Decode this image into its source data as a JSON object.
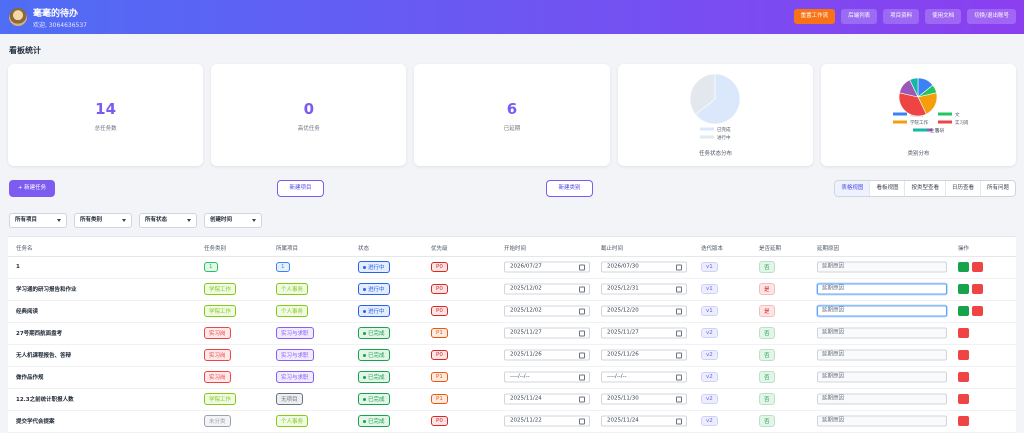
{
  "header": {
    "title": "毫毫的待办",
    "welcome": "欢迎, 3064636537",
    "reset": "重置工作流",
    "buttons": [
      "后端列表",
      "项目资料",
      "使用文档",
      "切换/退出账号"
    ]
  },
  "section_title": "看板统计",
  "stats": [
    {
      "value": "14",
      "label": "总任务数"
    },
    {
      "value": "0",
      "label": "高优任务"
    },
    {
      "value": "6",
      "label": "已延期"
    }
  ],
  "status_pie": {
    "title": "任务状态分布",
    "slices": [
      {
        "name": "已完成",
        "value": 9,
        "color": "#dbe7fb"
      },
      {
        "name": "进行中",
        "value": 5,
        "color": "#e3e8ef"
      }
    ]
  },
  "category_pie": {
    "title": "类别分布",
    "slices": [
      {
        "name": "未分类",
        "value": 2,
        "color": "#3b82f6"
      },
      {
        "name": "文",
        "value": 1,
        "color": "#22c55e"
      },
      {
        "name": "学院工作",
        "value": 3,
        "color": "#f59e0b"
      },
      {
        "name": "实习岗",
        "value": 5,
        "color": "#ef4444"
      },
      {
        "name": "科研",
        "value": 2,
        "color": "#9b59b6"
      },
      {
        "name": "生活",
        "value": 1,
        "color": "#14b8a6"
      }
    ]
  },
  "toolbar": {
    "new_task": "+ 新建任务",
    "new_project": "新建项目",
    "new_category": "新建类别",
    "views": [
      "表格视图",
      "看板视图",
      "按类型查看",
      "日历查看",
      "所有问题"
    ]
  },
  "filters": [
    "所有项目",
    "所有类别",
    "所有状态",
    "创建时间"
  ],
  "table": {
    "columns": [
      "任务名",
      "任务类别",
      "所属项目",
      "状态",
      "优先级",
      "开始时间",
      "截止时间",
      "迭代版本",
      "是否延期",
      "延期原因",
      "操作"
    ],
    "reason_placeholder": "延期原因",
    "rows": [
      {
        "name": "1",
        "category": {
          "text": "1",
          "color": "#22c55e"
        },
        "project": {
          "text": "1",
          "color": "#3b82f6"
        },
        "status": {
          "text": "进行中",
          "color": "#2563eb"
        },
        "priority": {
          "text": "P0",
          "color": "#dc2626"
        },
        "start": "2026/07/27",
        "end": "2026/07/30",
        "version": {
          "text": "v1",
          "color": "#6366f1"
        },
        "delayed": {
          "text": "否",
          "color": "#16a34a"
        },
        "can_complete": true,
        "focused": false
      },
      {
        "name": "学习通的研习报告和作业",
        "category": {
          "text": "学院工作",
          "color": "#84cc16"
        },
        "project": {
          "text": "个人事务",
          "color": "#84cc16"
        },
        "status": {
          "text": "进行中",
          "color": "#2563eb"
        },
        "priority": {
          "text": "P0",
          "color": "#dc2626"
        },
        "start": "2025/12/02",
        "end": "2025/12/31",
        "version": {
          "text": "v1",
          "color": "#6366f1"
        },
        "delayed": {
          "text": "是",
          "color": "#dc2626"
        },
        "can_complete": true,
        "focused": true
      },
      {
        "name": "经典阅读",
        "category": {
          "text": "学院工作",
          "color": "#84cc16"
        },
        "project": {
          "text": "个人事务",
          "color": "#84cc16"
        },
        "status": {
          "text": "进行中",
          "color": "#2563eb"
        },
        "priority": {
          "text": "P0",
          "color": "#dc2626"
        },
        "start": "2025/12/02",
        "end": "2025/12/20",
        "version": {
          "text": "v1",
          "color": "#6366f1"
        },
        "delayed": {
          "text": "是",
          "color": "#dc2626"
        },
        "can_complete": true,
        "focused": true
      },
      {
        "name": "27号期西航面盘考",
        "category": {
          "text": "实习岗",
          "color": "#ef4444"
        },
        "project": {
          "text": "实习与求职",
          "color": "#8b5cf6"
        },
        "status": {
          "text": "已完成",
          "color": "#16a34a"
        },
        "priority": {
          "text": "P1",
          "color": "#ea580c"
        },
        "start": "2025/11/27",
        "end": "2025/11/27",
        "version": {
          "text": "v2",
          "color": "#6366f1"
        },
        "delayed": {
          "text": "否",
          "color": "#16a34a"
        },
        "can_complete": false,
        "focused": false
      },
      {
        "name": "无人机课程报告、答辩",
        "category": {
          "text": "实习岗",
          "color": "#ef4444"
        },
        "project": {
          "text": "实习与求职",
          "color": "#8b5cf6"
        },
        "status": {
          "text": "已完成",
          "color": "#16a34a"
        },
        "priority": {
          "text": "P0",
          "color": "#dc2626"
        },
        "start": "2025/11/26",
        "end": "2025/11/26",
        "version": {
          "text": "v2",
          "color": "#6366f1"
        },
        "delayed": {
          "text": "否",
          "color": "#16a34a"
        },
        "can_complete": false,
        "focused": false
      },
      {
        "name": "做作品作规",
        "category": {
          "text": "实习岗",
          "color": "#ef4444"
        },
        "project": {
          "text": "实习与求职",
          "color": "#8b5cf6"
        },
        "status": {
          "text": "已完成",
          "color": "#16a34a"
        },
        "priority": {
          "text": "P1",
          "color": "#ea580c"
        },
        "start": "----/--/--",
        "end": "----/--/--",
        "version": {
          "text": "v2",
          "color": "#6366f1"
        },
        "delayed": {
          "text": "否",
          "color": "#16a34a"
        },
        "can_complete": false,
        "focused": false
      },
      {
        "name": "12.3之前统计职报人数",
        "category": {
          "text": "学院工作",
          "color": "#84cc16"
        },
        "project": {
          "text": "无项目",
          "color": "#6b7280"
        },
        "status": {
          "text": "已完成",
          "color": "#16a34a"
        },
        "priority": {
          "text": "P1",
          "color": "#ea580c"
        },
        "start": "2025/11/24",
        "end": "2025/11/30",
        "version": {
          "text": "v2",
          "color": "#6366f1"
        },
        "delayed": {
          "text": "否",
          "color": "#16a34a"
        },
        "can_complete": false,
        "focused": false
      },
      {
        "name": "提交学代会提案",
        "category": {
          "text": "未分类",
          "color": "#9ca3af"
        },
        "project": {
          "text": "个人事务",
          "color": "#84cc16"
        },
        "status": {
          "text": "已完成",
          "color": "#16a34a"
        },
        "priority": {
          "text": "P0",
          "color": "#dc2626"
        },
        "start": "2025/11/22",
        "end": "2025/11/24",
        "version": {
          "text": "v2",
          "color": "#6366f1"
        },
        "delayed": {
          "text": "否",
          "color": "#16a34a"
        },
        "can_complete": false,
        "focused": false
      }
    ]
  }
}
